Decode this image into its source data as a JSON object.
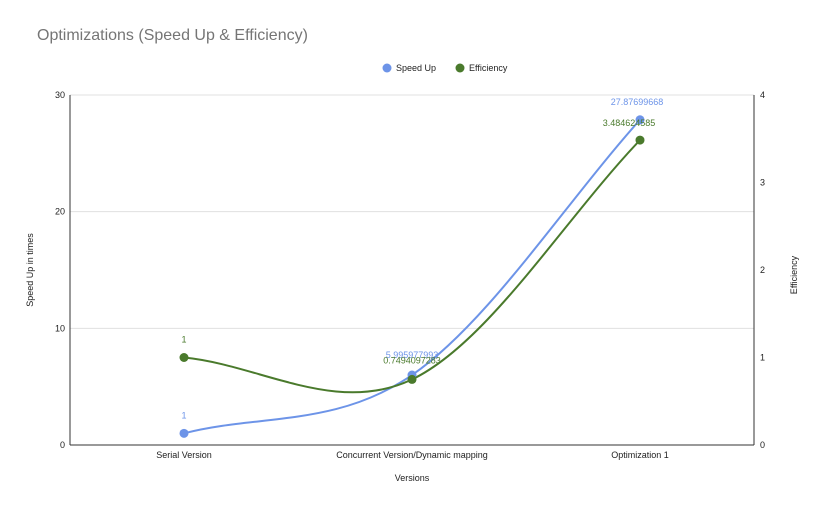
{
  "chart_data": {
    "type": "line",
    "title": "Optimizations (Speed Up & Efficiency)",
    "xlabel": "Versions",
    "ylabel": "Speed Up in times",
    "y2label": "Efficiency",
    "categories": [
      "Serial Version",
      "Concurrent Version/Dynamic mapping",
      "Optimization 1"
    ],
    "ylim": [
      0,
      30
    ],
    "yticks": [
      "0",
      "10",
      "20",
      "30"
    ],
    "y2lim": [
      0,
      4
    ],
    "y2ticks": [
      "0",
      "1",
      "2",
      "3",
      "4"
    ],
    "grid": true,
    "legend_position": "top",
    "series": [
      {
        "name": "Speed Up",
        "axis": "left",
        "color": "#6d94e8",
        "values": [
          1,
          5.995977993,
          27.87699668
        ],
        "labels": [
          "1",
          "5.995977993",
          "27.87699668"
        ]
      },
      {
        "name": "Efficiency",
        "axis": "right",
        "color": "#4a7a2c",
        "values": [
          1,
          0.7494097283,
          3.484624585
        ],
        "labels": [
          "1",
          "0.7494097283",
          "3.484624585"
        ]
      }
    ]
  }
}
